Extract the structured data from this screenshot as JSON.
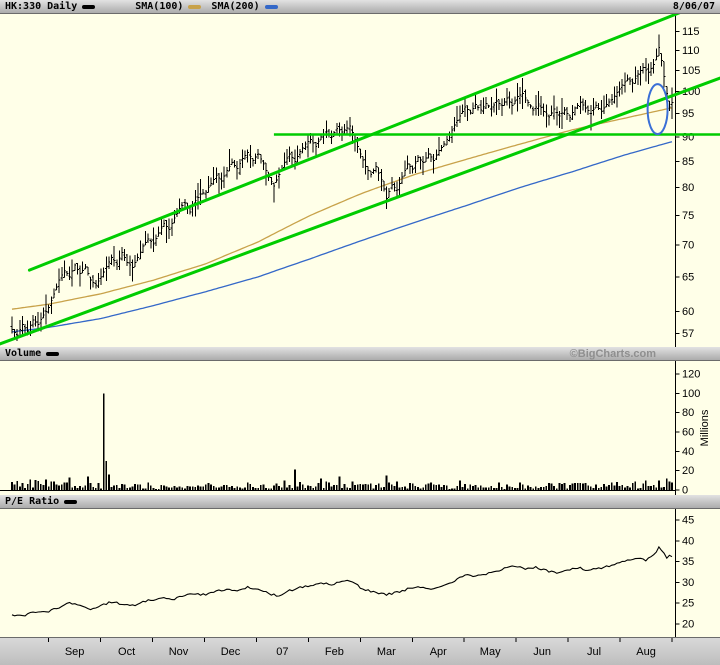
{
  "header": {
    "title": "HK:330 Daily",
    "sma100": "SMA(100)",
    "sma200": "SMA(200)",
    "date": "8/06/07"
  },
  "volume_header": {
    "label": "Volume",
    "watermark": "©BigCharts.com"
  },
  "pe_header": {
    "label": "P/E Ratio"
  },
  "axes": {
    "price_ticks": [
      115,
      110,
      105,
      100,
      95,
      90,
      85,
      80,
      75,
      70,
      65,
      60,
      57
    ],
    "volume_ticks": [
      120,
      100,
      80,
      60,
      40,
      20,
      0
    ],
    "volume_unit": "Millions",
    "pe_ticks": [
      45,
      40,
      35,
      30,
      25,
      20
    ],
    "months": [
      "Sep",
      "Oct",
      "Nov",
      "Dec",
      "07",
      "Feb",
      "Mar",
      "Apr",
      "May",
      "Jun",
      "Jul",
      "Aug"
    ]
  },
  "colors": {
    "background": "#FFFFE8",
    "bars": "#000000",
    "sma100": "#C8A24A",
    "sma200": "#3468C8",
    "annotation": "#00CC00",
    "ellipse": "#3A6FD6",
    "watermark": "#8F8F8F"
  },
  "chart_data": {
    "type": "ohlc",
    "panels": [
      "price",
      "volume",
      "pe_ratio"
    ],
    "days": 252,
    "price_scale": "log",
    "price_range": [
      56,
      117
    ],
    "volume_range": [
      0,
      120
    ],
    "pe_range": [
      20,
      45
    ],
    "close_keyframes": [
      [
        0,
        57.5
      ],
      [
        2,
        56.8
      ],
      [
        4,
        58.2
      ],
      [
        6,
        57.3
      ],
      [
        8,
        58.8
      ],
      [
        10,
        58.2
      ],
      [
        12,
        59.5
      ],
      [
        14,
        60.5
      ],
      [
        16,
        62.5
      ],
      [
        18,
        64.5
      ],
      [
        20,
        66
      ],
      [
        22,
        65
      ],
      [
        24,
        66.8
      ],
      [
        26,
        65.5
      ],
      [
        28,
        66.5
      ],
      [
        30,
        64.5
      ],
      [
        32,
        63.8
      ],
      [
        34,
        65
      ],
      [
        36,
        66.5
      ],
      [
        38,
        68
      ],
      [
        40,
        67
      ],
      [
        42,
        68.8
      ],
      [
        44,
        67.2
      ],
      [
        46,
        66.4
      ],
      [
        48,
        68
      ],
      [
        50,
        69.8
      ],
      [
        52,
        71
      ],
      [
        54,
        70.2
      ],
      [
        56,
        72
      ],
      [
        58,
        73.6
      ],
      [
        60,
        72.6
      ],
      [
        62,
        74.5
      ],
      [
        64,
        76.2
      ],
      [
        66,
        77.2
      ],
      [
        68,
        75.6
      ],
      [
        70,
        77.6
      ],
      [
        72,
        78.8
      ],
      [
        74,
        79.2
      ],
      [
        76,
        80.8
      ],
      [
        78,
        82.3
      ],
      [
        80,
        81.2
      ],
      [
        82,
        83.2
      ],
      [
        84,
        84.8
      ],
      [
        86,
        83.6
      ],
      [
        88,
        85.6
      ],
      [
        90,
        86.8
      ],
      [
        92,
        85.2
      ],
      [
        94,
        86.5
      ],
      [
        96,
        84.5
      ],
      [
        98,
        82
      ],
      [
        100,
        80.3
      ],
      [
        102,
        82.5
      ],
      [
        104,
        84.8
      ],
      [
        106,
        86.5
      ],
      [
        108,
        85
      ],
      [
        110,
        87
      ],
      [
        112,
        88.5
      ],
      [
        114,
        89.5
      ],
      [
        116,
        88
      ],
      [
        118,
        90
      ],
      [
        120,
        91
      ],
      [
        122,
        90
      ],
      [
        124,
        91.8
      ],
      [
        126,
        91
      ],
      [
        129,
        92.3
      ],
      [
        131,
        89.5
      ],
      [
        133,
        86.5
      ],
      [
        135,
        84
      ],
      [
        137,
        82.5
      ],
      [
        139,
        84
      ],
      [
        141,
        81.5
      ],
      [
        143,
        78
      ],
      [
        145,
        80.5
      ],
      [
        147,
        79.5
      ],
      [
        149,
        82
      ],
      [
        151,
        84.5
      ],
      [
        153,
        83.5
      ],
      [
        155,
        85.8
      ],
      [
        157,
        84.8
      ],
      [
        159,
        86.5
      ],
      [
        161,
        85.2
      ],
      [
        163,
        87.2
      ],
      [
        165,
        88.5
      ],
      [
        167,
        90.5
      ],
      [
        169,
        92.5
      ],
      [
        171,
        94.5
      ],
      [
        173,
        96.5
      ],
      [
        175,
        95.3
      ],
      [
        177,
        97
      ],
      [
        179,
        95.8
      ],
      [
        181,
        97.3
      ],
      [
        183,
        96
      ],
      [
        185,
        97.8
      ],
      [
        187,
        96.8
      ],
      [
        189,
        98.5
      ],
      [
        191,
        96.8
      ],
      [
        193,
        98.8
      ],
      [
        195,
        99.5
      ],
      [
        197,
        97.5
      ],
      [
        199,
        95.8
      ],
      [
        201,
        97.2
      ],
      [
        203,
        95.5
      ],
      [
        205,
        94.3
      ],
      [
        207,
        96
      ],
      [
        209,
        94.5
      ],
      [
        211,
        95.8
      ],
      [
        213,
        94.2
      ],
      [
        215,
        96.2
      ],
      [
        217,
        97.5
      ],
      [
        219,
        96.3
      ],
      [
        221,
        95
      ],
      [
        223,
        96.8
      ],
      [
        225,
        95.5
      ],
      [
        227,
        97
      ],
      [
        229,
        98.2
      ],
      [
        231,
        99.8
      ],
      [
        233,
        101.5
      ],
      [
        235,
        103
      ],
      [
        237,
        102
      ],
      [
        239,
        104.2
      ],
      [
        241,
        105.8
      ],
      [
        243,
        104.5
      ],
      [
        245,
        106.5
      ],
      [
        246,
        108.5
      ],
      [
        247,
        110.8
      ],
      [
        248,
        107.5
      ],
      [
        249,
        103.5
      ],
      [
        250,
        99.5
      ],
      [
        251,
        96.5
      ],
      [
        252,
        97.5
      ]
    ],
    "sma100_keyframes": [
      [
        0,
        60.3
      ],
      [
        14,
        61
      ],
      [
        34,
        62.5
      ],
      [
        54,
        64.5
      ],
      [
        74,
        67
      ],
      [
        94,
        70.5
      ],
      [
        114,
        75
      ],
      [
        134,
        79
      ],
      [
        154,
        82.5
      ],
      [
        174,
        85.5
      ],
      [
        194,
        88.5
      ],
      [
        214,
        91.5
      ],
      [
        234,
        94
      ],
      [
        252,
        96.3
      ]
    ],
    "sma200_keyframes": [
      [
        0,
        57.2
      ],
      [
        14,
        57.8
      ],
      [
        34,
        59
      ],
      [
        54,
        60.8
      ],
      [
        74,
        62.8
      ],
      [
        94,
        65
      ],
      [
        114,
        67.8
      ],
      [
        134,
        70.8
      ],
      [
        154,
        73.8
      ],
      [
        174,
        76.8
      ],
      [
        194,
        80
      ],
      [
        214,
        83
      ],
      [
        234,
        86.3
      ],
      [
        252,
        89
      ]
    ],
    "volume_base_keyframes": [
      [
        0,
        5
      ],
      [
        10,
        6
      ],
      [
        20,
        5
      ],
      [
        30,
        4
      ],
      [
        40,
        3.5
      ],
      [
        60,
        3
      ],
      [
        80,
        3.5
      ],
      [
        100,
        4
      ],
      [
        120,
        5
      ],
      [
        140,
        4.5
      ],
      [
        160,
        3.5
      ],
      [
        180,
        3
      ],
      [
        200,
        3.5
      ],
      [
        220,
        4
      ],
      [
        240,
        5
      ],
      [
        252,
        6
      ]
    ],
    "volume_spikes": [
      [
        7,
        11
      ],
      [
        15,
        9
      ],
      [
        22,
        13
      ],
      [
        29,
        14
      ],
      [
        35,
        100
      ],
      [
        36,
        30
      ],
      [
        37,
        16
      ],
      [
        52,
        8
      ],
      [
        75,
        7
      ],
      [
        90,
        8
      ],
      [
        104,
        10
      ],
      [
        108,
        21
      ],
      [
        118,
        12
      ],
      [
        125,
        14
      ],
      [
        130,
        9
      ],
      [
        143,
        15
      ],
      [
        147,
        9
      ],
      [
        160,
        8
      ],
      [
        171,
        10
      ],
      [
        186,
        8
      ],
      [
        194,
        8
      ],
      [
        205,
        7
      ],
      [
        216,
        7
      ],
      [
        229,
        8
      ],
      [
        238,
        9
      ],
      [
        247,
        10
      ],
      [
        250,
        12
      ],
      [
        251,
        9
      ]
    ],
    "pe_keyframes": [
      [
        0,
        22.3
      ],
      [
        4,
        21.8
      ],
      [
        8,
        22.8
      ],
      [
        14,
        23
      ],
      [
        18,
        24
      ],
      [
        22,
        25
      ],
      [
        26,
        24.3
      ],
      [
        30,
        23.6
      ],
      [
        34,
        24.5
      ],
      [
        38,
        25.3
      ],
      [
        42,
        24.8
      ],
      [
        46,
        24.4
      ],
      [
        50,
        25.5
      ],
      [
        54,
        25.8
      ],
      [
        58,
        26.4
      ],
      [
        62,
        26
      ],
      [
        66,
        27
      ],
      [
        70,
        27.3
      ],
      [
        74,
        27
      ],
      [
        78,
        27.8
      ],
      [
        82,
        28.3
      ],
      [
        86,
        27.8
      ],
      [
        90,
        28.8
      ],
      [
        94,
        28.5
      ],
      [
        98,
        27.3
      ],
      [
        102,
        26.8
      ],
      [
        106,
        28
      ],
      [
        110,
        28.8
      ],
      [
        114,
        29.3
      ],
      [
        118,
        29.8
      ],
      [
        122,
        29.5
      ],
      [
        126,
        30.2
      ],
      [
        129,
        30.4
      ],
      [
        133,
        28.8
      ],
      [
        137,
        27.8
      ],
      [
        143,
        27
      ],
      [
        147,
        27.6
      ],
      [
        151,
        28.4
      ],
      [
        155,
        28.8
      ],
      [
        159,
        28.4
      ],
      [
        163,
        29
      ],
      [
        165,
        29.3
      ],
      [
        169,
        30.4
      ],
      [
        173,
        31.8
      ],
      [
        177,
        31.4
      ],
      [
        181,
        32
      ],
      [
        185,
        32.5
      ],
      [
        188,
        33.5
      ],
      [
        192,
        34
      ],
      [
        196,
        33.2
      ],
      [
        200,
        33.6
      ],
      [
        204,
        32.8
      ],
      [
        208,
        32.4
      ],
      [
        212,
        33
      ],
      [
        216,
        33.6
      ],
      [
        220,
        32.8
      ],
      [
        224,
        33.4
      ],
      [
        228,
        34
      ],
      [
        230,
        34.4
      ],
      [
        234,
        35.2
      ],
      [
        238,
        35.8
      ],
      [
        242,
        35.4
      ],
      [
        245,
        36.5
      ],
      [
        247,
        38.3
      ],
      [
        248,
        37.5
      ],
      [
        249,
        36.8
      ],
      [
        250,
        36
      ],
      [
        251,
        36.6
      ],
      [
        252,
        36
      ]
    ],
    "annotations": {
      "channel_upper": {
        "from": [
          9,
          66.4
        ],
        "to": [
          244,
          117
        ]
      },
      "channel_lower": {
        "from": [
          0,
          56.2
        ],
        "to": [
          252,
          99
        ]
      },
      "horizontal": {
        "price": 90.5,
        "from_day": 100
      },
      "ellipse": {
        "day": 246.5,
        "price": 96
      }
    }
  }
}
